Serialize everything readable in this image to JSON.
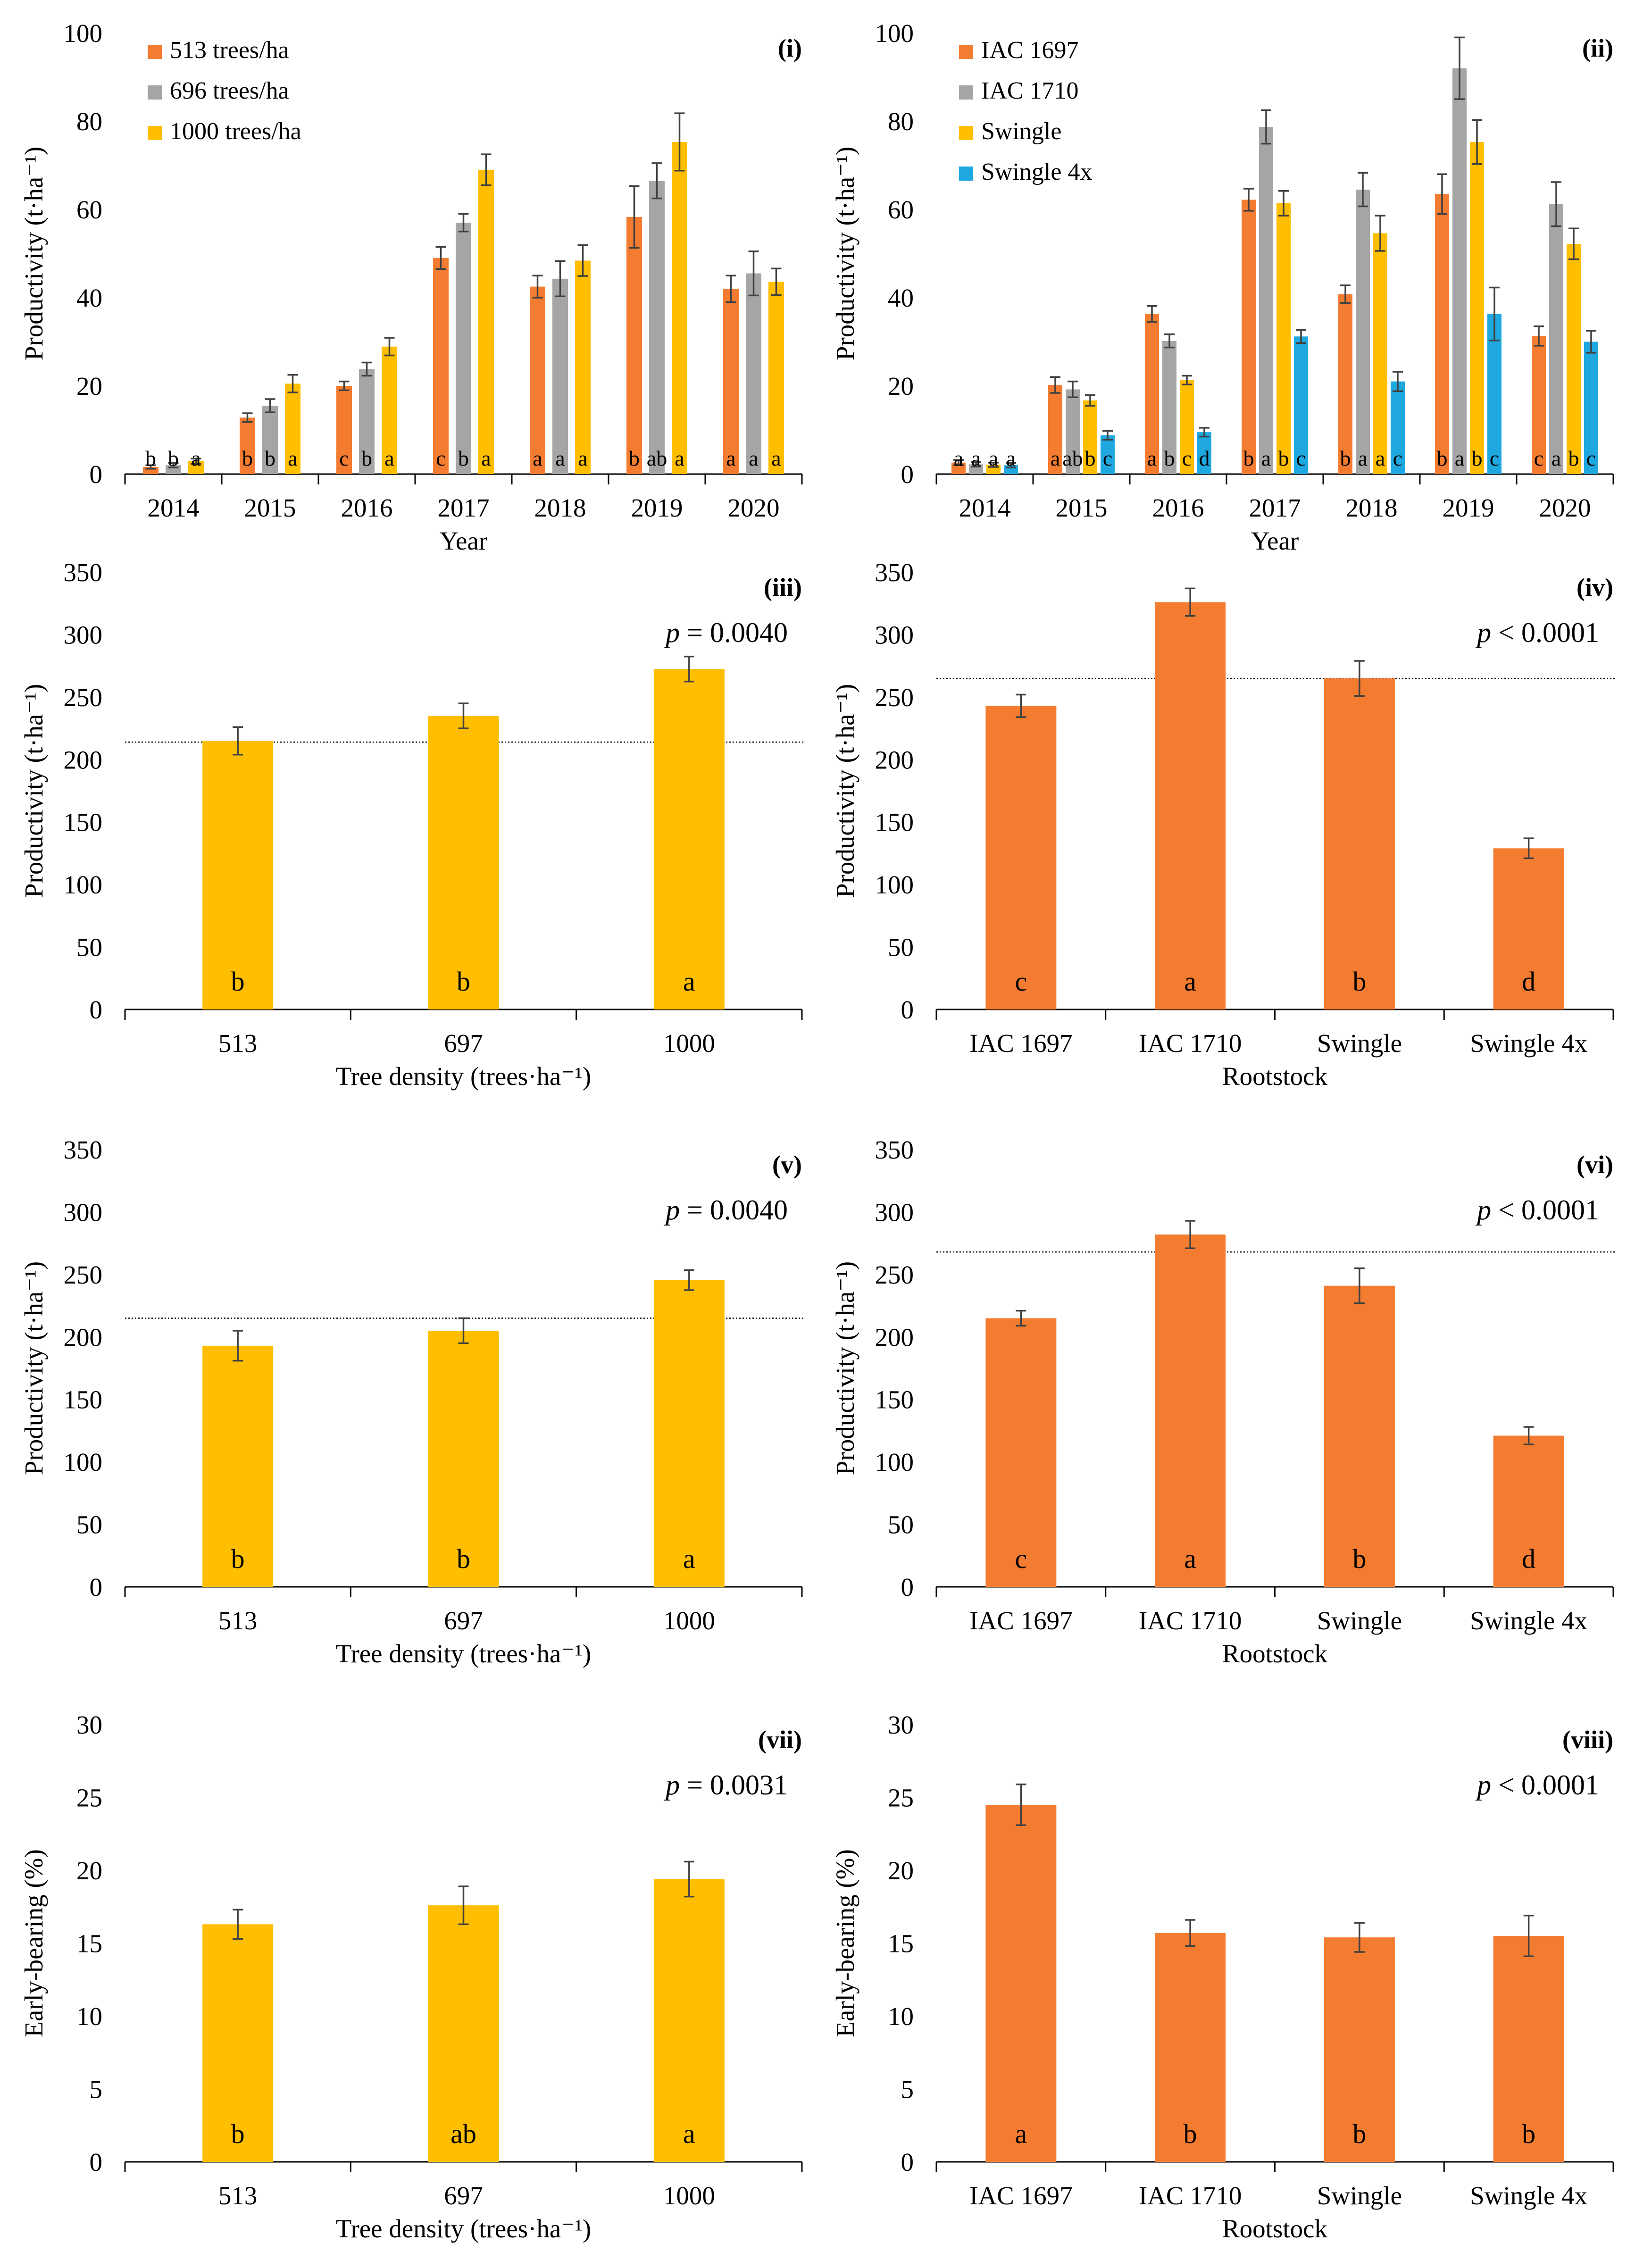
{
  "colors": {
    "orange": "#F47C30",
    "gray": "#A5A5A5",
    "yellow": "#FFBE00",
    "blue": "#1FA8E0",
    "text": "#000000",
    "axis": "#000000",
    "error": "#404040",
    "reference": "#000000"
  },
  "chart_data": [
    {
      "id": "i",
      "type": "bar",
      "panel_label": "(i)",
      "xlabel": "Year",
      "ylabel": "Productivity (t·ha⁻¹)",
      "ylim": [
        0,
        100
      ],
      "yticks": [
        0,
        20,
        40,
        60,
        80,
        100
      ],
      "categories": [
        "2014",
        "2015",
        "2016",
        "2017",
        "2018",
        "2019",
        "2020"
      ],
      "legend_position": "top-left",
      "series": [
        {
          "name": "513 trees/ha",
          "color": "#F47C30",
          "values": [
            1.6,
            12.8,
            20,
            49,
            42.5,
            58.3,
            42
          ],
          "errors": [
            0.4,
            1.0,
            1.0,
            2.5,
            2.5,
            7.0,
            3.0
          ],
          "letters": [
            "b",
            "b",
            "c",
            "c",
            "a",
            "b",
            "a"
          ]
        },
        {
          "name": "696 trees/ha",
          "color": "#A5A5A5",
          "values": [
            2.0,
            15.5,
            23.8,
            57,
            44.3,
            66.5,
            45.5
          ],
          "errors": [
            0.5,
            1.5,
            1.5,
            2.0,
            4.0,
            4.0,
            5.0
          ],
          "letters": [
            "b",
            "b",
            "b",
            "b",
            "a",
            "ab",
            "a"
          ]
        },
        {
          "name": "1000 trees/ha",
          "color": "#FFBE00",
          "values": [
            2.9,
            20.5,
            28.9,
            69,
            48.4,
            75.3,
            43.6
          ],
          "errors": [
            0.6,
            2.0,
            2.0,
            3.5,
            3.5,
            6.5,
            3.0
          ],
          "letters": [
            "a",
            "a",
            "a",
            "a",
            "a",
            "a",
            "a"
          ]
        }
      ]
    },
    {
      "id": "ii",
      "type": "bar",
      "panel_label": "(ii)",
      "xlabel": "Year",
      "ylabel": "Productivity (t·ha⁻¹)",
      "ylim": [
        0,
        100
      ],
      "yticks": [
        0,
        20,
        40,
        60,
        80,
        100
      ],
      "categories": [
        "2014",
        "2015",
        "2016",
        "2017",
        "2018",
        "2019",
        "2020"
      ],
      "legend_position": "top-left",
      "series": [
        {
          "name": "IAC 1697",
          "color": "#F47C30",
          "values": [
            2.6,
            20.2,
            36.3,
            62.2,
            40.8,
            63.5,
            31.3
          ],
          "errors": [
            0.6,
            1.8,
            1.8,
            2.5,
            2.0,
            4.5,
            2.2
          ],
          "letters": [
            "a",
            "a",
            "a",
            "b",
            "b",
            "b",
            "c"
          ]
        },
        {
          "name": "IAC 1710",
          "color": "#A5A5A5",
          "values": [
            2.2,
            19.2,
            30.2,
            78.7,
            64.5,
            92.0,
            61.2
          ],
          "errors": [
            0.5,
            1.8,
            1.5,
            3.8,
            3.8,
            7.0,
            5.0
          ],
          "letters": [
            "a",
            "ab",
            "b",
            "a",
            "a",
            "a",
            "a"
          ]
        },
        {
          "name": "Swingle",
          "color": "#FFBE00",
          "values": [
            2.1,
            16.7,
            21.3,
            61.4,
            54.6,
            75.3,
            52.2
          ],
          "errors": [
            0.5,
            1.2,
            1.0,
            2.8,
            4.0,
            5.0,
            3.5
          ],
          "letters": [
            "a",
            "b",
            "c",
            "b",
            "a",
            "b",
            "b"
          ]
        },
        {
          "name": "Swingle 4x",
          "color": "#1FA8E0",
          "values": [
            2.0,
            8.8,
            9.5,
            31.2,
            21.0,
            36.3,
            30.0
          ],
          "errors": [
            0.5,
            1.0,
            1.0,
            1.5,
            2.2,
            6.0,
            2.5
          ],
          "letters": [
            "a",
            "c",
            "d",
            "c",
            "c",
            "c",
            "c"
          ]
        }
      ]
    },
    {
      "id": "iii",
      "type": "bar",
      "panel_label": "(iii)",
      "p_label": "p = 0.0040",
      "xlabel": "Tree density (trees·ha⁻¹)",
      "ylabel": "Productivity (t·ha⁻¹)",
      "ylim": [
        0,
        350
      ],
      "yticks": [
        0,
        50,
        100,
        150,
        200,
        250,
        300,
        350
      ],
      "categories": [
        "513",
        "697",
        "1000"
      ],
      "values": [
        215,
        235,
        272.5
      ],
      "errors": [
        11,
        10,
        10
      ],
      "letters": [
        "b",
        "b",
        "a"
      ],
      "reference_line": 214,
      "color": "#FFBE00"
    },
    {
      "id": "iv",
      "type": "bar",
      "panel_label": "(iv)",
      "p_label": "p < 0.0001",
      "xlabel": "Rootstock",
      "ylabel": "Productivity (t·ha⁻¹)",
      "ylim": [
        0,
        350
      ],
      "yticks": [
        0,
        50,
        100,
        150,
        200,
        250,
        300,
        350
      ],
      "categories": [
        "IAC 1697",
        "IAC 1710",
        "Swingle",
        "Swingle 4x"
      ],
      "values": [
        243,
        326,
        265,
        129
      ],
      "errors": [
        9,
        11,
        14,
        8
      ],
      "letters": [
        "c",
        "a",
        "b",
        "d"
      ],
      "reference_line": 265,
      "color": "#F47C30"
    },
    {
      "id": "v",
      "type": "bar",
      "panel_label": "(v)",
      "p_label": "p = 0.0040",
      "xlabel": "Tree density (trees·ha⁻¹)",
      "ylabel": "Productivity (t·ha⁻¹)",
      "ylim": [
        0,
        350
      ],
      "yticks": [
        0,
        50,
        100,
        150,
        200,
        250,
        300,
        350
      ],
      "categories": [
        "513",
        "697",
        "1000"
      ],
      "values": [
        193,
        205,
        245.5
      ],
      "errors": [
        12,
        10,
        8
      ],
      "letters": [
        "b",
        "b",
        "a"
      ],
      "reference_line": 215,
      "color": "#FFBE00"
    },
    {
      "id": "vi",
      "type": "bar",
      "panel_label": "(vi)",
      "p_label": "p < 0.0001",
      "xlabel": "Rootstock",
      "ylabel": "Productivity (t·ha⁻¹)",
      "ylim": [
        0,
        350
      ],
      "yticks": [
        0,
        50,
        100,
        150,
        200,
        250,
        300,
        350
      ],
      "categories": [
        "IAC 1697",
        "IAC 1710",
        "Swingle",
        "Swingle 4x"
      ],
      "values": [
        215,
        282,
        241,
        121
      ],
      "errors": [
        6,
        11,
        14,
        7
      ],
      "letters": [
        "c",
        "a",
        "b",
        "d"
      ],
      "reference_line": 268,
      "color": "#F47C30"
    },
    {
      "id": "vii",
      "type": "bar",
      "panel_label": "(vii)",
      "p_label": "p = 0.0031",
      "xlabel": "Tree density (trees·ha⁻¹)",
      "ylabel": "Early-bearing (%)",
      "ylim": [
        0,
        30
      ],
      "yticks": [
        0,
        5,
        10,
        15,
        20,
        25,
        30
      ],
      "categories": [
        "513",
        "697",
        "1000"
      ],
      "values": [
        16.3,
        17.6,
        19.4
      ],
      "errors": [
        1.0,
        1.3,
        1.2
      ],
      "letters": [
        "b",
        "ab",
        "a"
      ],
      "color": "#FFBE00"
    },
    {
      "id": "viii",
      "type": "bar",
      "panel_label": "(viii)",
      "p_label": "p < 0.0001",
      "xlabel": "Rootstock",
      "ylabel": "Early-bearing (%)",
      "ylim": [
        0,
        30
      ],
      "yticks": [
        0,
        5,
        10,
        15,
        20,
        25,
        30
      ],
      "categories": [
        "IAC 1697",
        "IAC 1710",
        "Swingle",
        "Swingle 4x"
      ],
      "values": [
        24.5,
        15.7,
        15.4,
        15.5
      ],
      "errors": [
        1.4,
        0.9,
        1.0,
        1.4
      ],
      "letters": [
        "a",
        "b",
        "b",
        "b"
      ],
      "color": "#F47C30"
    }
  ]
}
